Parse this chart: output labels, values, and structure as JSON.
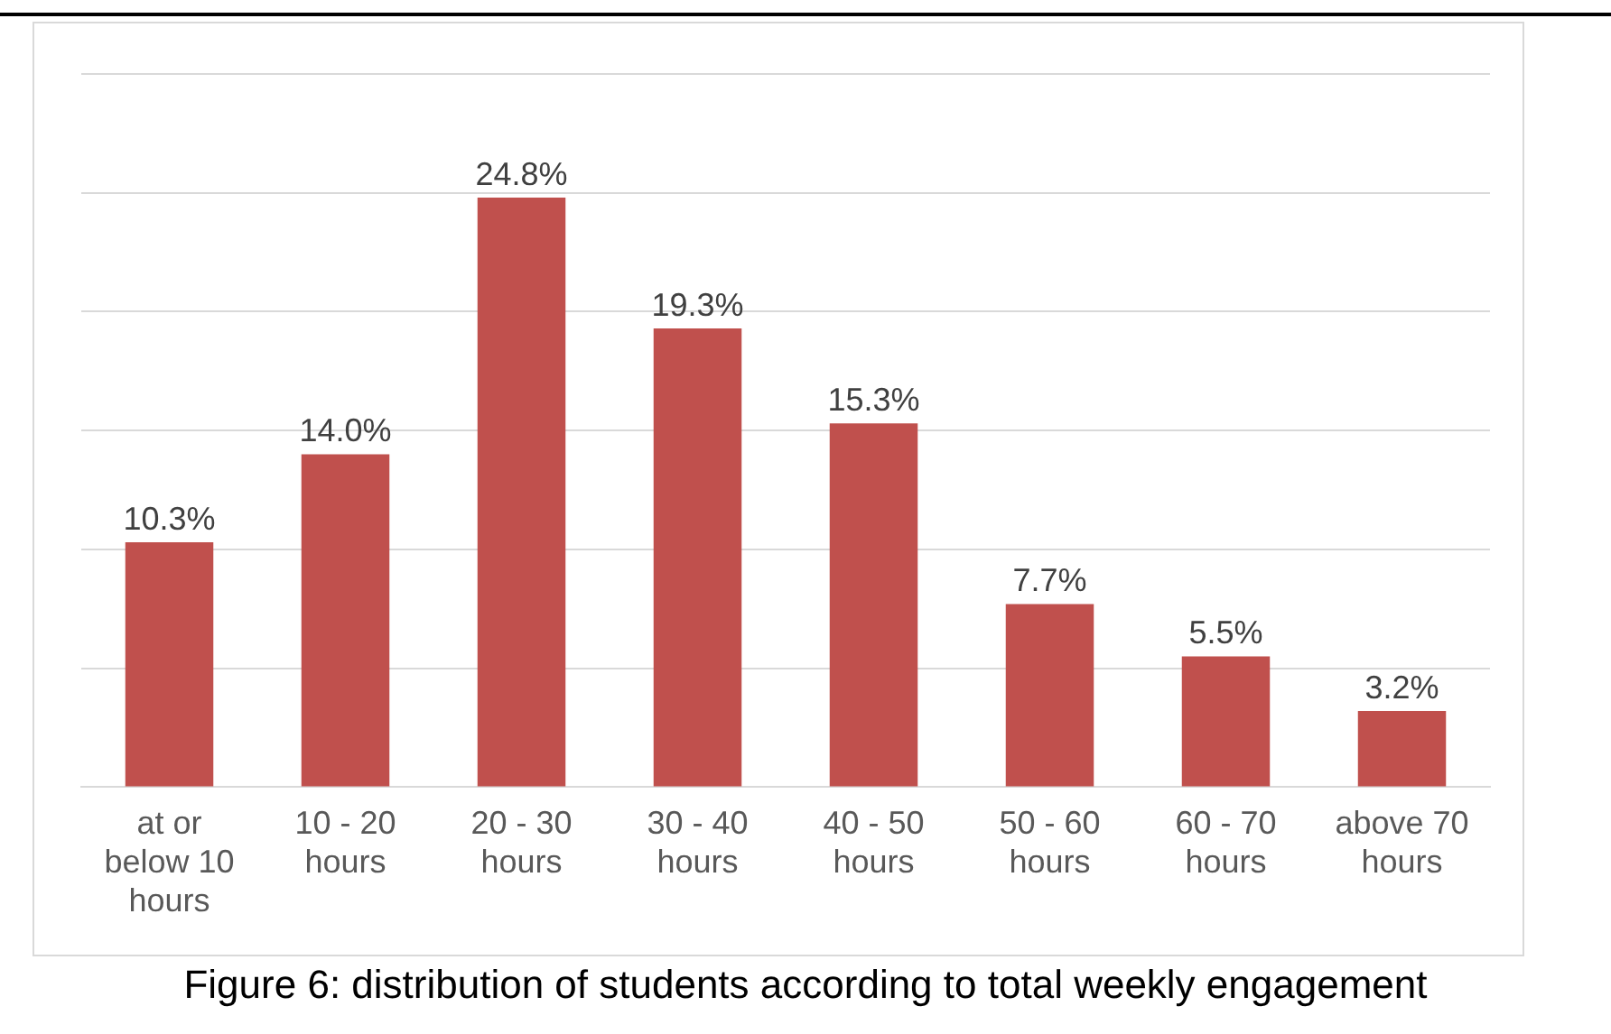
{
  "chart_data": {
    "type": "bar",
    "categories": [
      "at or below 10 hours",
      "10 - 20 hours",
      "20 - 30 hours",
      "30 - 40 hours",
      "40 - 50 hours",
      "50 - 60 hours",
      "60 - 70 hours",
      "above 70 hours"
    ],
    "values": [
      10.3,
      14.0,
      24.8,
      19.3,
      15.3,
      7.7,
      5.5,
      3.2
    ],
    "value_labels": [
      "10.3%",
      "14.0%",
      "24.8%",
      "19.3%",
      "15.3%",
      "7.7%",
      "5.5%",
      "3.2%"
    ],
    "color": "#c0504d",
    "ylim": [
      0,
      30
    ],
    "yticks": [
      {
        "value": 0,
        "label": null
      },
      {
        "value": 5,
        "label": null
      },
      {
        "value": 10,
        "label": null
      },
      {
        "value": 15,
        "label": null
      },
      {
        "value": 20,
        "label": null
      },
      {
        "value": 25,
        "label": null
      },
      {
        "value": 30,
        "label": null
      }
    ],
    "grid": "y",
    "tick_labels": "x",
    "legend": false,
    "annotations": [
      "Figure 6: distribution of students according to total weekly engagement"
    ]
  }
}
